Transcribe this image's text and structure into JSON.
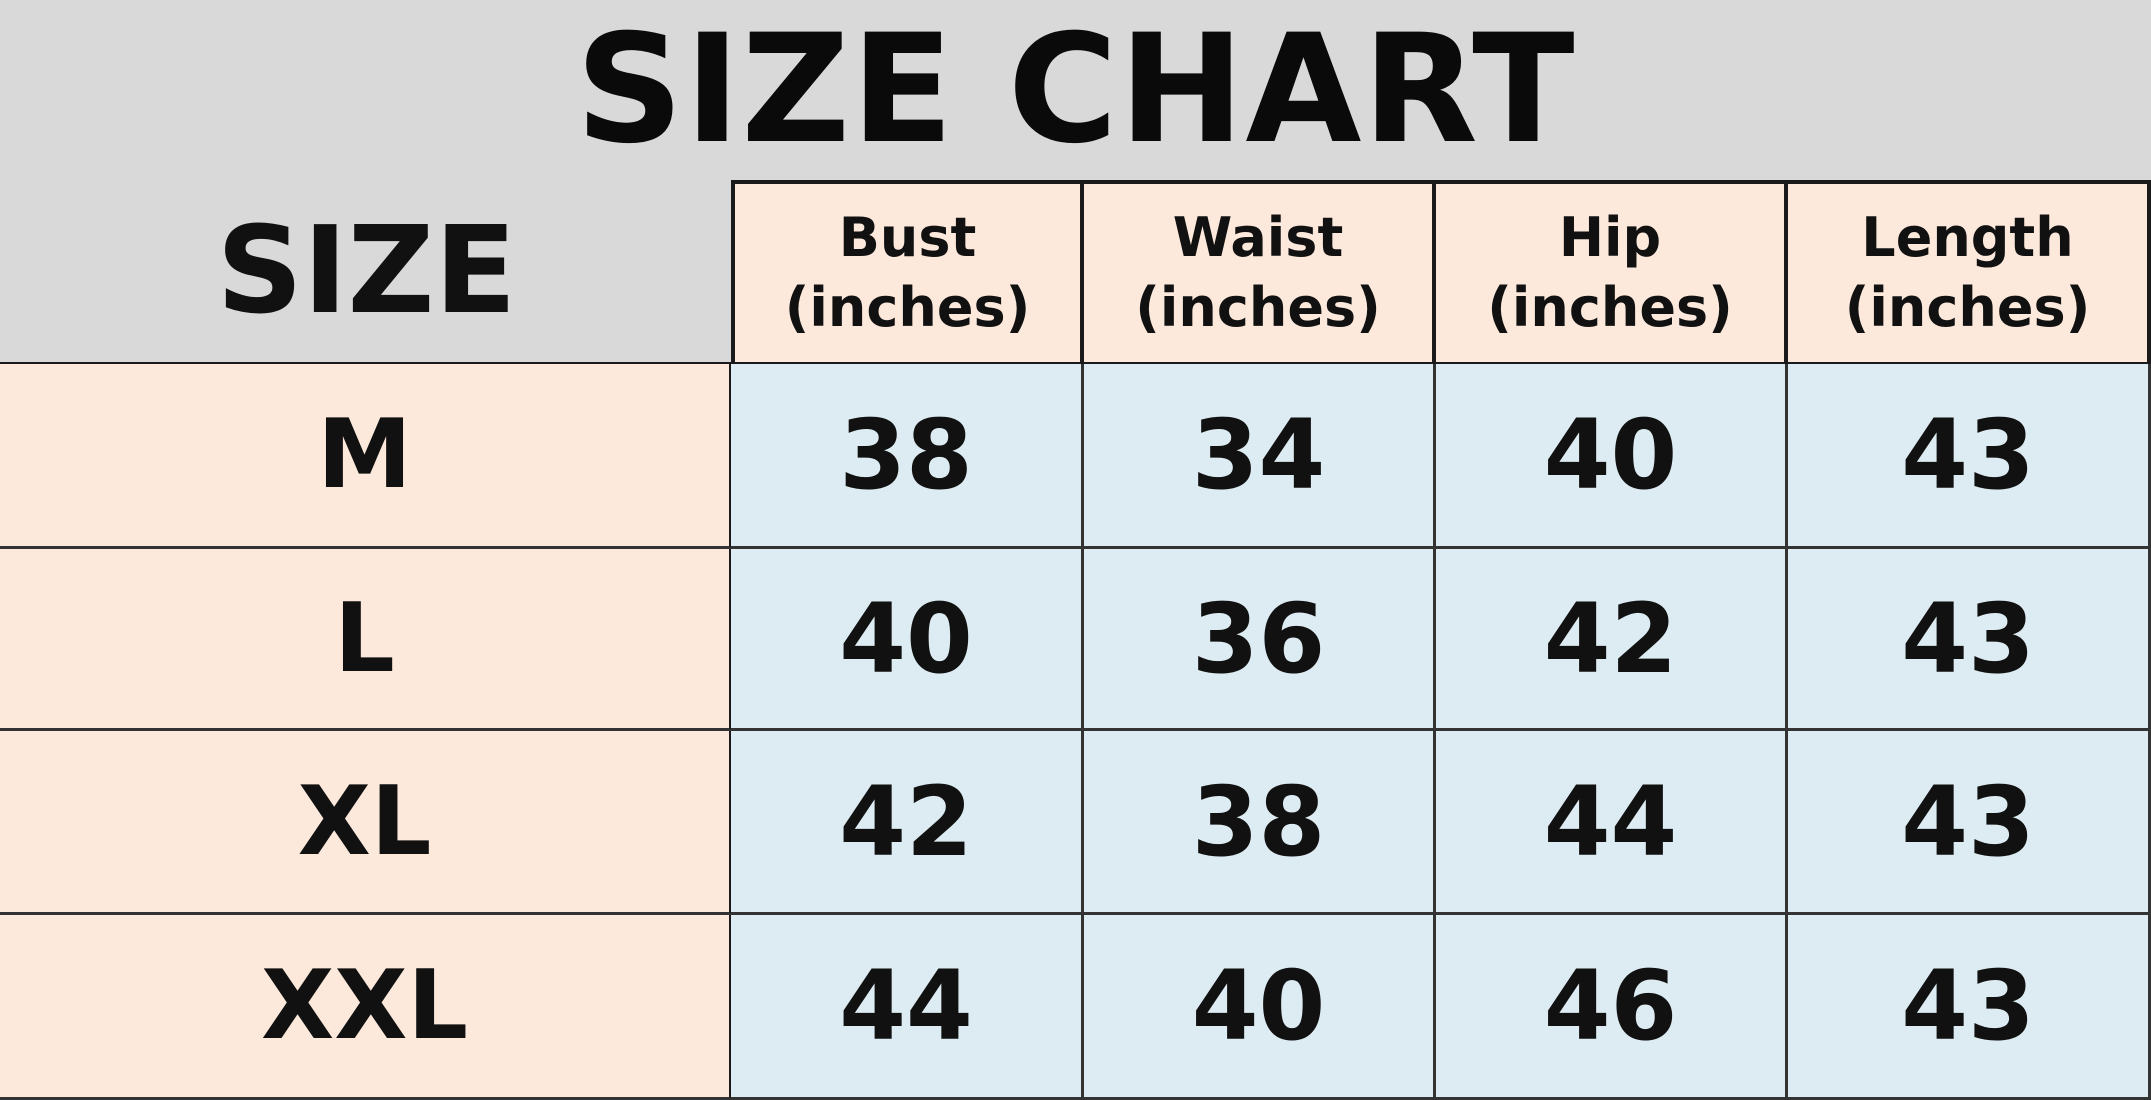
{
  "title": "SIZE CHART",
  "size_header": "SIZE",
  "columns": [
    {
      "name": "Bust",
      "unit": "(inches)"
    },
    {
      "name": "Waist",
      "unit": "(inches)"
    },
    {
      "name": "Hip",
      "unit": "(inches)"
    },
    {
      "name": "Length",
      "unit": "(inches)"
    }
  ],
  "rows": [
    {
      "size": "M",
      "values": [
        "38",
        "34",
        "40",
        "43"
      ]
    },
    {
      "size": "L",
      "values": [
        "40",
        "36",
        "42",
        "43"
      ]
    },
    {
      "size": "XL",
      "values": [
        "42",
        "38",
        "44",
        "43"
      ]
    },
    {
      "size": "XXL",
      "values": [
        "44",
        "40",
        "46",
        "43"
      ]
    }
  ],
  "colors": {
    "title_bg": "#d9d9d9",
    "header_bg": "#fce9dc",
    "size_bg": "#fce9dc",
    "value_bg": "#ddecf3",
    "border": "#1a1a1a"
  }
}
